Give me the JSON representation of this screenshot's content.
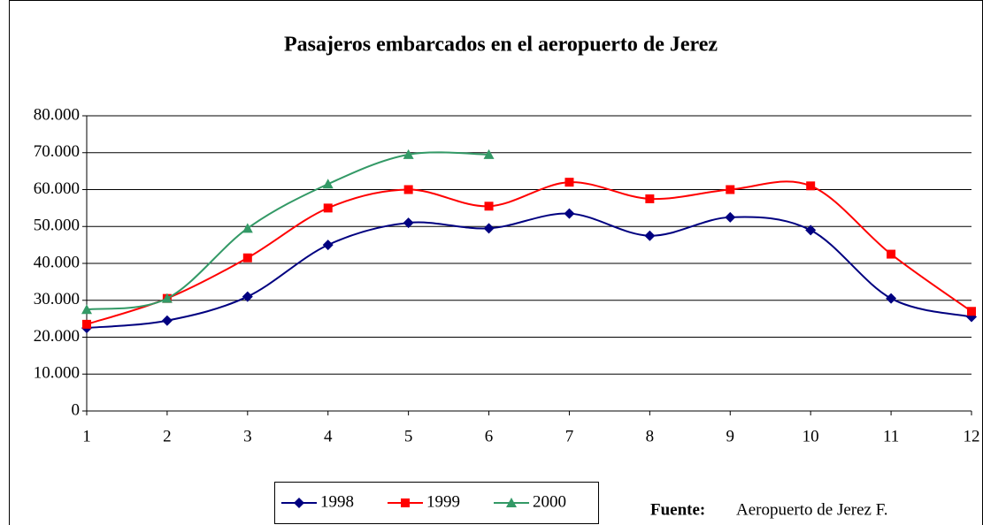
{
  "chart_data": {
    "type": "line",
    "title": "Pasajeros embarcados en el aeropuerto de Jerez",
    "x": [
      1,
      2,
      3,
      4,
      5,
      6,
      7,
      8,
      9,
      10,
      11,
      12
    ],
    "series": [
      {
        "name": "1998",
        "color": "#000080",
        "marker": "diamond",
        "values": [
          22500,
          24500,
          31000,
          45000,
          51000,
          49500,
          53500,
          47500,
          52500,
          49000,
          30500,
          25500
        ]
      },
      {
        "name": "1999",
        "color": "#ff0000",
        "marker": "square",
        "values": [
          23500,
          30500,
          41500,
          55000,
          60000,
          55500,
          62000,
          57500,
          60000,
          61000,
          42500,
          27000
        ]
      },
      {
        "name": "2000",
        "color": "#339966",
        "marker": "triangle",
        "values": [
          27500,
          30500,
          49500,
          61500,
          69500,
          69500,
          null,
          null,
          null,
          null,
          null,
          null
        ]
      }
    ],
    "xlim": [
      1,
      12
    ],
    "xticks": [
      1,
      2,
      3,
      4,
      5,
      6,
      7,
      8,
      9,
      10,
      11,
      12
    ],
    "ylim": [
      0,
      80000
    ],
    "yticks": [
      0,
      {
        "value": 10000,
        "label": "10.000"
      },
      {
        "value": 20000,
        "label": "20.000"
      },
      {
        "value": 30000,
        "label": "30.000"
      },
      {
        "value": 40000,
        "label": "40.000"
      },
      {
        "value": 50000,
        "label": "50.000"
      },
      {
        "value": 60000,
        "label": "60.000"
      },
      {
        "value": 70000,
        "label": "70.000"
      },
      {
        "value": 80000,
        "label": "80.000"
      }
    ],
    "grid": true,
    "legend": "bottom",
    "source_label": "Fuente:",
    "source": "Aeropuerto de Jerez F."
  }
}
